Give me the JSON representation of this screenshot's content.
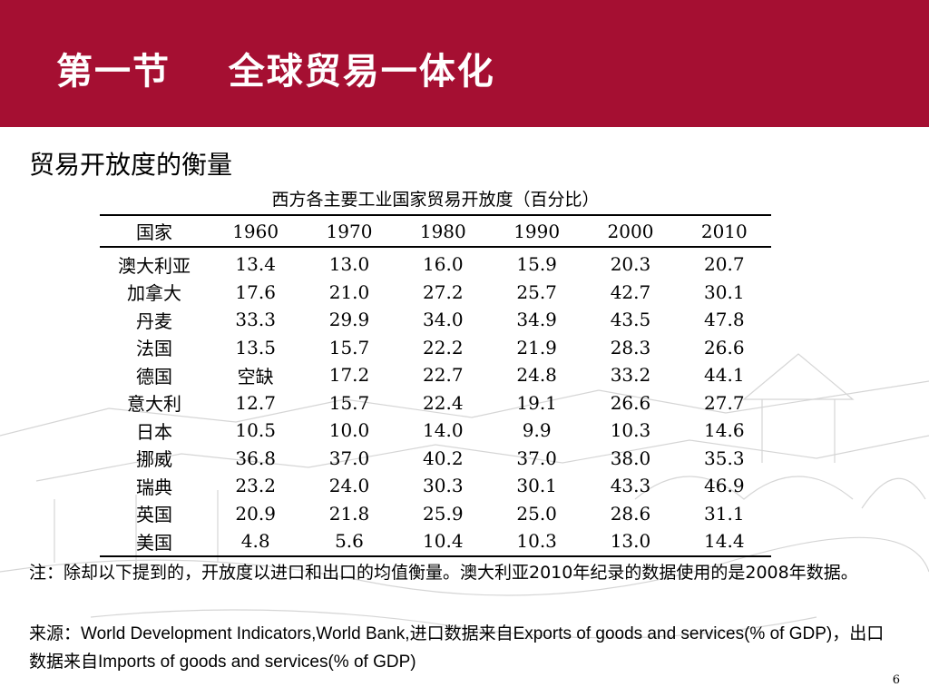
{
  "header": {
    "title": "第一节    全球贸易一体化"
  },
  "subtitle": "贸易开放度的衡量",
  "table": {
    "caption": "西方各主要工业国家贸易开放度（百分比）",
    "columns": [
      "国家",
      "1960",
      "1970",
      "1980",
      "1990",
      "2000",
      "2010"
    ],
    "rows": [
      [
        "澳大利亚",
        "13.4",
        "13.0",
        "16.0",
        "15.9",
        "20.3",
        "20.7"
      ],
      [
        "加拿大",
        "17.6",
        "21.0",
        "27.2",
        "25.7",
        "42.7",
        "30.1"
      ],
      [
        "丹麦",
        "33.3",
        "29.9",
        "34.0",
        "34.9",
        "43.5",
        "47.8"
      ],
      [
        "法国",
        "13.5",
        "15.7",
        "22.2",
        "21.9",
        "28.3",
        "26.6"
      ],
      [
        "德国",
        "空缺",
        "17.2",
        "22.7",
        "24.8",
        "33.2",
        "44.1"
      ],
      [
        "意大利",
        "12.7",
        "15.7",
        "22.4",
        "19.1",
        "26.6",
        "27.7"
      ],
      [
        "日本",
        "10.5",
        "10.0",
        "14.0",
        "9.9",
        "10.3",
        "14.6"
      ],
      [
        "挪威",
        "36.8",
        "37.0",
        "40.2",
        "37.0",
        "38.0",
        "35.3"
      ],
      [
        "瑞典",
        "23.2",
        "24.0",
        "30.3",
        "30.1",
        "43.3",
        "46.9"
      ],
      [
        "英国",
        "20.9",
        "21.8",
        "25.9",
        "25.0",
        "28.6",
        "31.1"
      ],
      [
        "美国",
        "4.8",
        "5.6",
        "10.4",
        "10.3",
        "13.0",
        "14.4"
      ]
    ]
  },
  "note": "注：除却以下提到的，开放度以进口和出口的均值衡量。澳大利亚2010年纪录的数据使用的是2008年数据。",
  "source": "来源：World Development Indicators,World Bank,进口数据来自Exports of goods and services(% of GDP)，出口数据来自Imports of goods and services(% of GDP)",
  "page_number": "6",
  "colors": {
    "header_bg": "#a50f32",
    "header_text": "#ffffff"
  }
}
